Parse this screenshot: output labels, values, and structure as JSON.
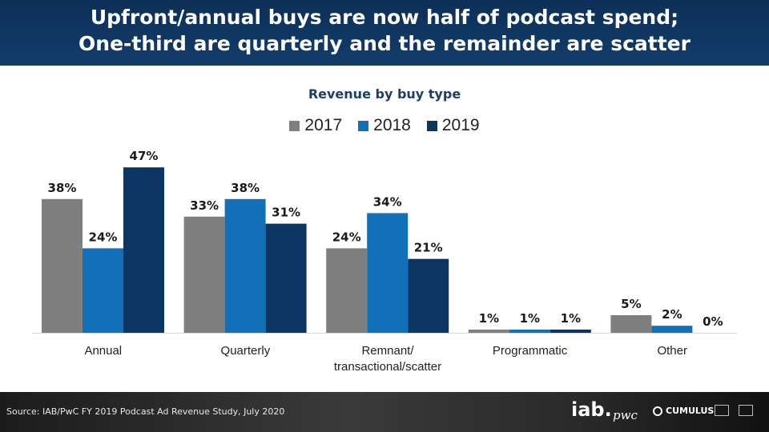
{
  "header": {
    "line1": "Upfront/annual buys are now half of podcast spend;",
    "line2": "One-third are quarterly and the remainder are scatter"
  },
  "footer": {
    "source": "Source: IAB/PwC FY 2019 Podcast Ad Revenue Study, July 2020",
    "logos": {
      "iab": "iab.",
      "pwc": "pwc",
      "cumulus": "CUMULUS"
    }
  },
  "chart_data": {
    "type": "bar",
    "title": "Revenue by buy type",
    "categories": [
      "Annual",
      "Quarterly",
      "Remnant/ transactional/scatter",
      "Programmatic",
      "Other"
    ],
    "series": [
      {
        "name": "2017",
        "color": "#7f7f7f",
        "values": [
          38,
          33,
          24,
          1,
          5
        ]
      },
      {
        "name": "2018",
        "color": "#1270b8",
        "values": [
          24,
          38,
          34,
          1,
          2
        ]
      },
      {
        "name": "2019",
        "color": "#0d3561",
        "values": [
          47,
          31,
          21,
          1,
          0
        ]
      }
    ],
    "value_suffix": "%",
    "ylim": [
      0,
      50
    ],
    "legend": "top",
    "grid": false
  }
}
